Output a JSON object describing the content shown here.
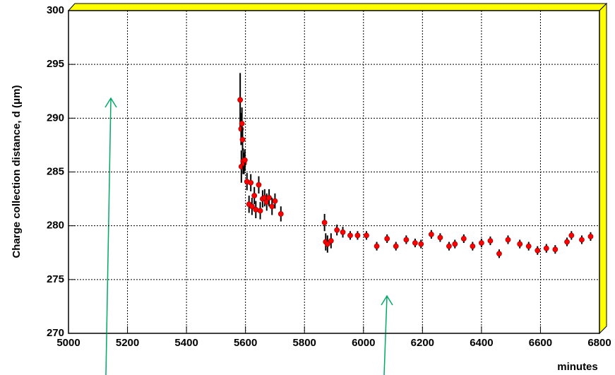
{
  "chart_data": {
    "type": "scatter",
    "xlabel": "minutes",
    "ylabel": "Charge collection distance, d (μm)",
    "x": [
      5582,
      5585,
      5588,
      5590,
      5586,
      5592,
      5595,
      5598,
      5605,
      5612,
      5618,
      5622,
      5630,
      5635,
      5645,
      5650,
      5658,
      5665,
      5672,
      5680,
      5690,
      5700,
      5720,
      5868,
      5872,
      5878,
      5890,
      5910,
      5930,
      5955,
      5980,
      6010,
      6045,
      6080,
      6110,
      6145,
      6175,
      6195,
      6230,
      6260,
      6290,
      6310,
      6340,
      6370,
      6400,
      6430,
      6460,
      6490,
      6530,
      6560,
      6590,
      6620,
      6650,
      6690,
      6705,
      6740,
      6770
    ],
    "values": [
      291.7,
      289,
      289.5,
      288,
      285.5,
      286,
      285.8,
      286.1,
      284.1,
      282,
      284,
      281.8,
      282.8,
      281.5,
      283.8,
      281.4,
      282.5,
      282.6,
      282.2,
      282.6,
      281.8,
      282.3,
      281.1,
      280.3,
      278.5,
      278.3,
      278.6,
      279.6,
      279.4,
      279.1,
      279.1,
      279.1,
      278.1,
      278.8,
      278.1,
      278.7,
      278.4,
      278.3,
      279.2,
      278.9,
      278.1,
      278.3,
      278.8,
      278.1,
      278.4,
      278.6,
      277.4,
      278.7,
      278.3,
      278.1,
      277.7,
      277.9,
      277.8,
      278.5,
      279.1,
      278.7,
      279
    ],
    "errors": [
      2.5,
      1.5,
      1.5,
      1,
      1.5,
      1.2,
      1,
      1,
      0.8,
      0.8,
      0.8,
      0.8,
      0.8,
      0.8,
      0.8,
      0.8,
      0.8,
      0.8,
      0.8,
      0.8,
      0.8,
      0.7,
      0.7,
      0.8,
      0.8,
      0.8,
      0.7,
      0.5,
      0.5,
      0.4,
      0.4,
      0.4,
      0.4,
      0.4,
      0.4,
      0.4,
      0.4,
      0.4,
      0.4,
      0.4,
      0.4,
      0.4,
      0.4,
      0.4,
      0.4,
      0.4,
      0.4,
      0.4,
      0.4,
      0.4,
      0.4,
      0.4,
      0.4,
      0.4,
      0.4,
      0.4,
      0.4
    ],
    "color": "#ff0000",
    "xlim": [
      5000,
      6800
    ],
    "ylim": [
      270,
      300
    ],
    "xticks": [
      5000,
      5200,
      5400,
      5600,
      5800,
      6000,
      6200,
      6400,
      6600,
      6800
    ],
    "yticks": [
      270,
      275,
      280,
      285,
      290,
      295,
      300
    ],
    "grid": true
  }
}
